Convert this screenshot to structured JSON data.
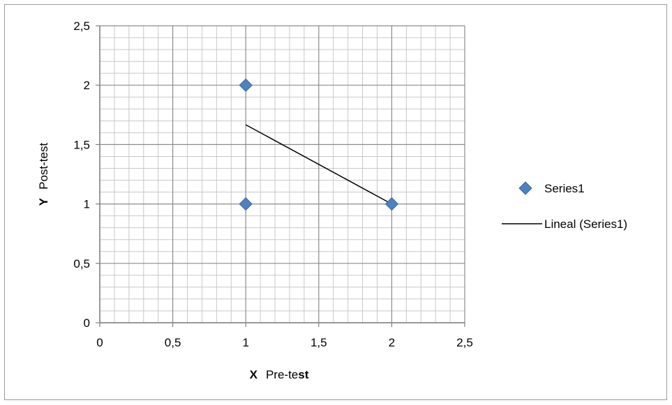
{
  "chart_data": {
    "type": "scatter",
    "x_ticks": [
      "0",
      "0,5",
      "1",
      "1,5",
      "2",
      "2,5"
    ],
    "y_ticks": [
      "0",
      "0,5",
      "1",
      "1,5",
      "2",
      "2,5"
    ],
    "xlim": [
      0,
      2.5
    ],
    "ylim": [
      0,
      2.5
    ],
    "major_step": 0.5,
    "minor_step": 0.1,
    "grid": true,
    "xlabel": {
      "prefix": "X",
      "text_a": "Pre-te",
      "text_b": "st"
    },
    "ylabel": {
      "prefix": "Y",
      "text": "Post-test"
    },
    "legend_position": "right",
    "series": [
      {
        "name": "Series1",
        "kind": "scatter",
        "marker": "diamond",
        "color": "#4f81bd",
        "points": [
          {
            "x": 1,
            "y": 2
          },
          {
            "x": 1,
            "y": 1
          },
          {
            "x": 2,
            "y": 1
          }
        ]
      },
      {
        "name": "Lineal (Series1)",
        "kind": "trendline",
        "color": "#000000",
        "points": [
          {
            "x": 1,
            "y": 1.6667
          },
          {
            "x": 2,
            "y": 1
          }
        ]
      }
    ]
  }
}
